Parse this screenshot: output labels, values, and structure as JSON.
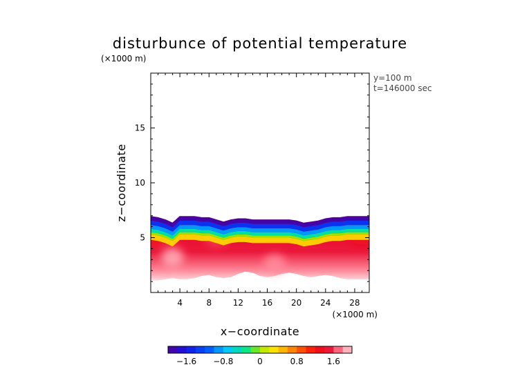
{
  "chart_data": {
    "type": "heatmap",
    "title": "disturbunce of potential temperature",
    "xlabel": "x−coordinate",
    "ylabel": "z−coordinate",
    "x_unit": "(×1000 m)",
    "y_unit": "(×1000 m)",
    "info_lines": [
      "y=100  m",
      "t=146000 sec"
    ],
    "xlim": [
      0,
      30
    ],
    "ylim": [
      0,
      20
    ],
    "x_ticks": [
      4,
      8,
      12,
      16,
      20,
      24,
      28
    ],
    "x_tick_labels": [
      "4",
      "8",
      "12",
      "16",
      "20",
      "24",
      "28"
    ],
    "y_ticks": [
      5,
      10,
      15
    ],
    "y_tick_labels": [
      "5",
      "10",
      "15"
    ],
    "colorbar": {
      "min": -2.0,
      "max": 2.0,
      "ticks": [
        -1.6,
        -0.8,
        0,
        0.8,
        1.6
      ],
      "tick_labels": [
        "−1.6",
        "−0.8",
        "0",
        "0.8",
        "1.6"
      ]
    },
    "field": {
      "x": [
        0,
        1,
        2,
        3,
        4,
        5,
        6,
        7,
        8,
        9,
        10,
        11,
        12,
        13,
        14,
        15,
        16,
        17,
        18,
        19,
        20,
        21,
        22,
        23,
        24,
        25,
        26,
        27,
        28,
        29,
        30
      ],
      "top_z": [
        6.9,
        6.8,
        6.6,
        6.3,
        6.9,
        6.9,
        6.9,
        6.8,
        6.8,
        6.6,
        6.4,
        6.6,
        6.7,
        6.7,
        6.6,
        6.6,
        6.6,
        6.6,
        6.6,
        6.6,
        6.5,
        6.3,
        6.4,
        6.5,
        6.7,
        6.8,
        6.8,
        6.9,
        6.9,
        6.9,
        6.9
      ],
      "bottom_z": [
        1.1,
        1.1,
        1.2,
        1.3,
        1.2,
        1.2,
        1.3,
        1.5,
        1.6,
        1.4,
        1.3,
        1.4,
        1.7,
        1.9,
        1.8,
        1.5,
        1.4,
        1.5,
        1.7,
        1.8,
        1.7,
        1.5,
        1.4,
        1.5,
        1.6,
        1.5,
        1.3,
        1.2,
        1.2,
        1.2,
        1.2
      ],
      "cool_band": [
        {
          "z_offset": 0.0,
          "value": -1.9
        },
        {
          "z_offset": 0.35,
          "value": -1.4
        },
        {
          "z_offset": 0.75,
          "value": -0.9
        },
        {
          "z_offset": 1.1,
          "value": -0.4
        },
        {
          "z_offset": 1.4,
          "value": 0.0
        },
        {
          "z_offset": 1.6,
          "value": 0.4
        }
      ],
      "warm_core_value": 1.4,
      "hot_spots": [
        {
          "x": 0.8,
          "z": 5.3,
          "value": 1.2
        },
        {
          "x": 3.0,
          "z": 3.2,
          "value": 1.9
        },
        {
          "x": 9.0,
          "z": 5.0,
          "value": 1.6
        },
        {
          "x": 17.0,
          "z": 2.6,
          "value": 1.8
        },
        {
          "x": 29.0,
          "z": 5.2,
          "value": 1.3
        }
      ],
      "base_value": 2.0
    }
  }
}
